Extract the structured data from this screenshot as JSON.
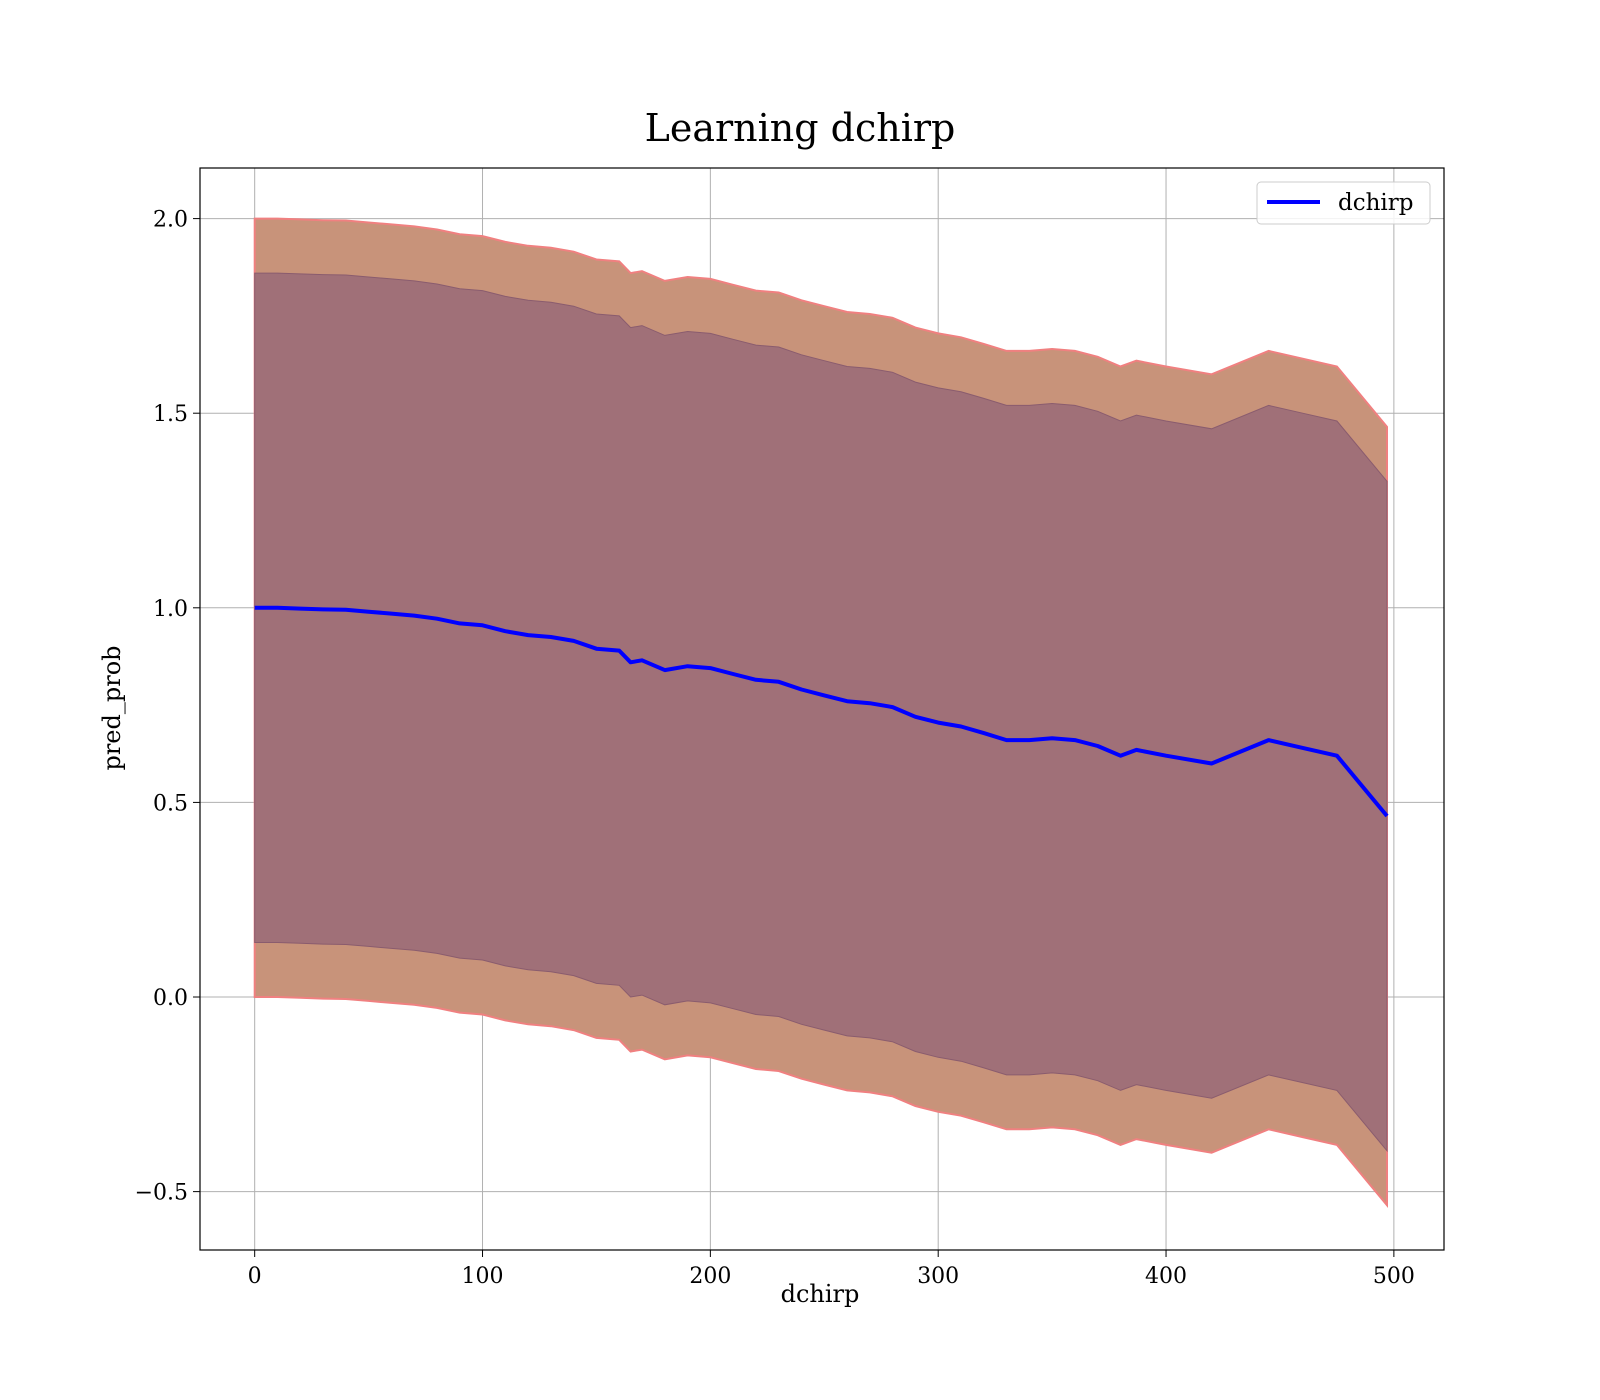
{
  "chart_data": {
    "type": "line",
    "title": "Learning dchirp",
    "xlabel": "dchirp",
    "ylabel": "pred_prob",
    "xlim": [
      -24,
      522
    ],
    "ylim": [
      -0.65,
      2.13
    ],
    "xticks": [
      0,
      100,
      200,
      300,
      400,
      500
    ],
    "yticks": [
      -0.5,
      0.0,
      0.5,
      1.0,
      1.5,
      2.0
    ],
    "xtick_labels": [
      "0",
      "100",
      "200",
      "300",
      "400",
      "500"
    ],
    "ytick_labels": [
      "−0.5",
      "0.0",
      "0.5",
      "1.0",
      "1.5",
      "2.0"
    ],
    "grid": true,
    "legend": {
      "position": "top-right",
      "entries": [
        "dchirp"
      ]
    },
    "colors": {
      "line": "#0000ff",
      "outer_band": "#c8937a",
      "outer_band_edge": "#f08080",
      "inner_band": "#a07078",
      "inner_band_edge": "#8a5c6e",
      "grid": "#b0b0b0"
    },
    "series": [
      {
        "name": "dchirp",
        "x": [
          0,
          10,
          20,
          30,
          40,
          50,
          60,
          70,
          80,
          90,
          100,
          110,
          120,
          130,
          140,
          150,
          160,
          165,
          170,
          180,
          190,
          200,
          210,
          220,
          230,
          240,
          250,
          260,
          270,
          280,
          290,
          300,
          310,
          320,
          330,
          340,
          350,
          360,
          370,
          380,
          387,
          400,
          420,
          445,
          460,
          475,
          497
        ],
        "y": [
          1.0,
          1.0,
          0.998,
          0.996,
          0.995,
          0.99,
          0.985,
          0.98,
          0.972,
          0.96,
          0.955,
          0.94,
          0.93,
          0.925,
          0.915,
          0.895,
          0.89,
          0.86,
          0.865,
          0.84,
          0.85,
          0.845,
          0.83,
          0.815,
          0.81,
          0.79,
          0.775,
          0.76,
          0.755,
          0.745,
          0.72,
          0.705,
          0.695,
          0.678,
          0.66,
          0.66,
          0.665,
          0.66,
          0.645,
          0.62,
          0.635,
          0.62,
          0.6,
          0.66,
          0.64,
          0.62,
          0.465
        ]
      }
    ],
    "bands": [
      {
        "upper_offset": 1.0,
        "lower_offset": -1.0
      },
      {
        "upper_offset": 0.86,
        "lower_offset": -0.86
      }
    ]
  }
}
